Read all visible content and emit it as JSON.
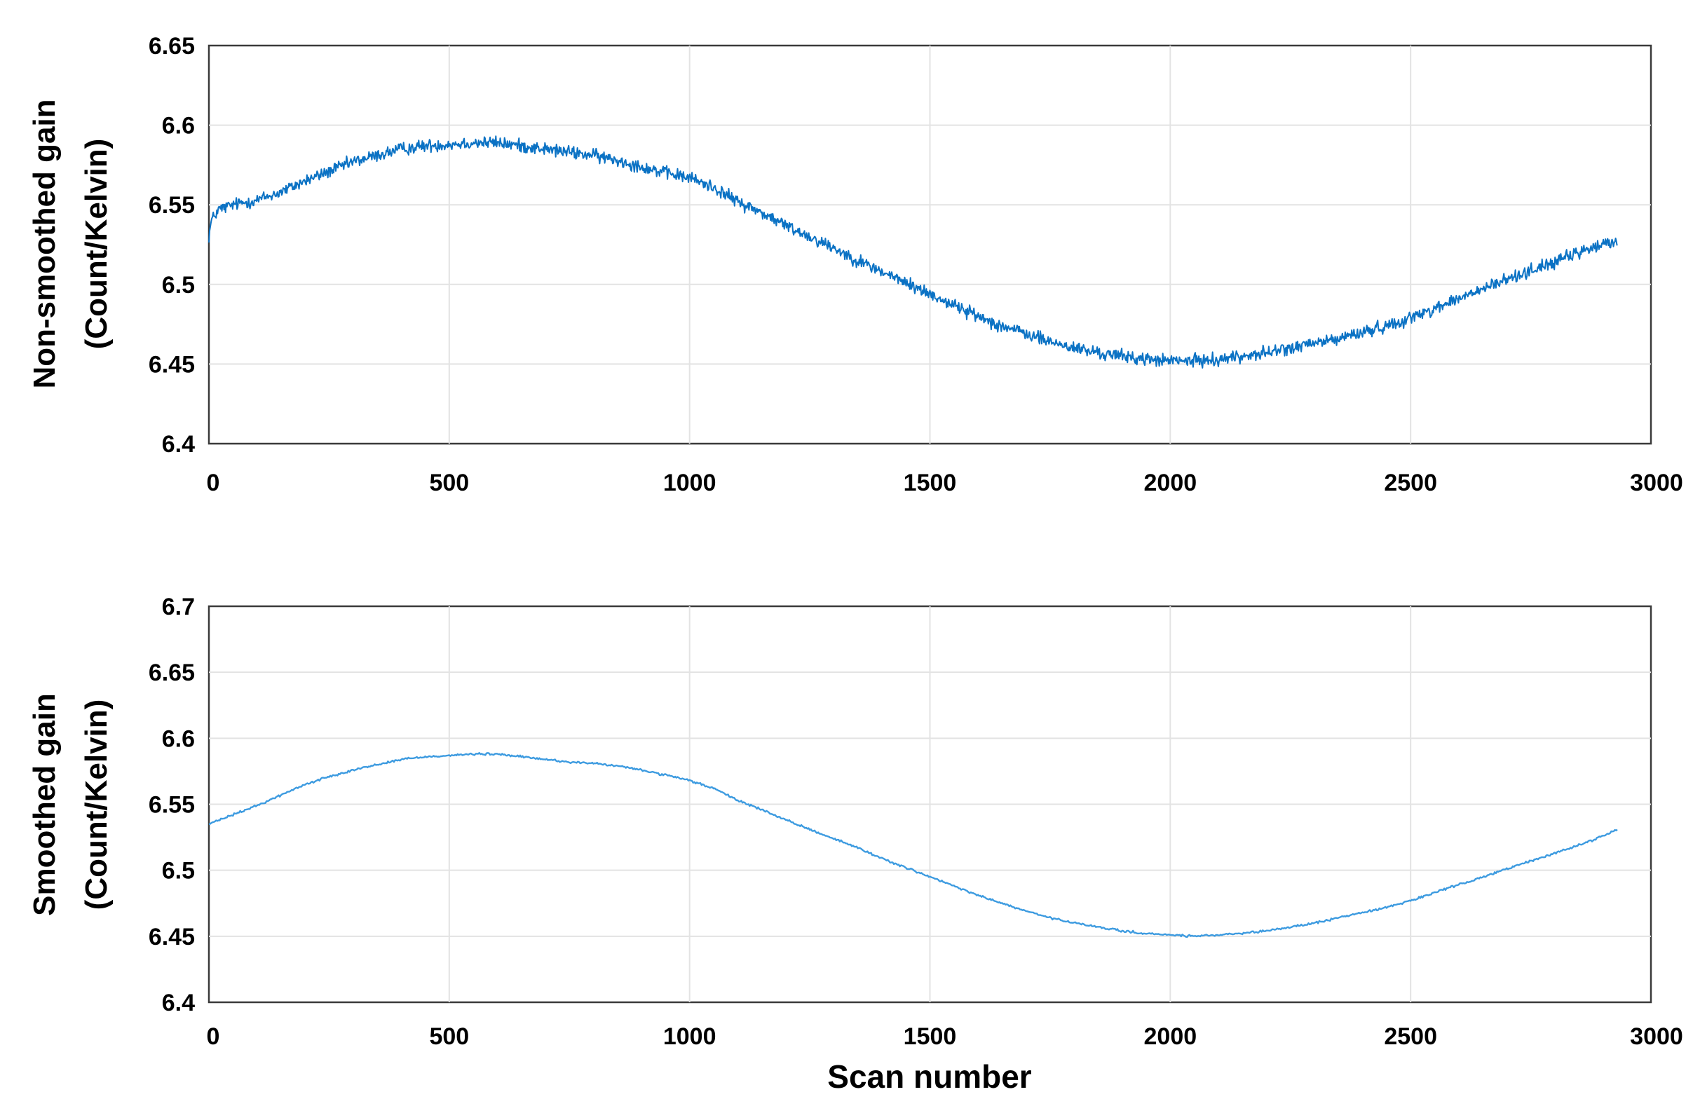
{
  "chart_data": [
    {
      "type": "line",
      "name": "top-panel",
      "ylabel": [
        "Non-smoothed gain",
        "(Count/Kelvin)"
      ],
      "xlabel": "",
      "xlim": [
        0,
        3000
      ],
      "ylim": [
        6.4,
        6.65
      ],
      "xticks": [
        0,
        500,
        1000,
        1500,
        2000,
        2500,
        3000
      ],
      "xtick_labels": [
        "0",
        "500",
        "1000",
        "1500",
        "2000",
        "2500",
        "3000"
      ],
      "yticks": [
        6.4,
        6.45,
        6.5,
        6.55,
        6.6,
        6.65
      ],
      "ytick_labels": [
        "6.4",
        "6.45",
        "6.5",
        "6.55",
        "6.6",
        "6.65"
      ],
      "grid": true,
      "line_color": "#0b72c4",
      "noise_amplitude": 0.006,
      "series": [
        {
          "x": [
            0,
            5,
            20,
            50,
            100,
            150,
            200,
            250,
            300,
            350,
            400,
            450,
            500,
            550,
            600,
            650,
            700,
            750,
            800,
            850,
            900,
            950,
            1000,
            1050,
            1100,
            1150,
            1200,
            1250,
            1300,
            1350,
            1400,
            1450,
            1500,
            1550,
            1600,
            1650,
            1700,
            1750,
            1800,
            1850,
            1900,
            1950,
            2000,
            2050,
            2100,
            2150,
            2200,
            2250,
            2300,
            2350,
            2400,
            2450,
            2500,
            2550,
            2600,
            2650,
            2700,
            2750,
            2800,
            2850,
            2900,
            2930
          ],
          "y": [
            6.53,
            6.54,
            6.547,
            6.55,
            6.553,
            6.558,
            6.565,
            6.571,
            6.577,
            6.581,
            6.585,
            6.587,
            6.588,
            6.589,
            6.589,
            6.587,
            6.585,
            6.583,
            6.581,
            6.578,
            6.574,
            6.57,
            6.567,
            6.561,
            6.552,
            6.545,
            6.537,
            6.53,
            6.523,
            6.515,
            6.508,
            6.501,
            6.494,
            6.487,
            6.48,
            6.474,
            6.469,
            6.464,
            6.46,
            6.457,
            6.455,
            6.453,
            6.452,
            6.452,
            6.453,
            6.455,
            6.457,
            6.46,
            6.463,
            6.466,
            6.47,
            6.474,
            6.479,
            6.485,
            6.491,
            6.497,
            6.503,
            6.509,
            6.514,
            6.52,
            6.525,
            6.527
          ]
        }
      ]
    },
    {
      "type": "line",
      "name": "bottom-panel",
      "ylabel": [
        "Smoothed gain",
        "(Count/Kelvin)"
      ],
      "xlabel": "Scan number",
      "xlim": [
        0,
        3000
      ],
      "ylim": [
        6.4,
        6.7
      ],
      "xticks": [
        0,
        500,
        1000,
        1500,
        2000,
        2500,
        3000
      ],
      "xtick_labels": [
        "0",
        "500",
        "1000",
        "1500",
        "2000",
        "2500",
        "3000"
      ],
      "yticks": [
        6.4,
        6.45,
        6.5,
        6.55,
        6.6,
        6.65,
        6.7
      ],
      "ytick_labels": [
        "6.4",
        "6.45",
        "6.5",
        "6.55",
        "6.6",
        "6.65",
        "6.7"
      ],
      "grid": true,
      "line_color": "#3d9be0",
      "noise_amplitude": 0.0012,
      "series": [
        {
          "x": [
            0,
            50,
            100,
            150,
            200,
            250,
            300,
            350,
            400,
            450,
            500,
            550,
            600,
            650,
            700,
            750,
            800,
            850,
            900,
            950,
            1000,
            1050,
            1100,
            1150,
            1200,
            1250,
            1300,
            1350,
            1400,
            1450,
            1500,
            1550,
            1600,
            1650,
            1700,
            1750,
            1800,
            1850,
            1900,
            1950,
            2000,
            2050,
            2100,
            2150,
            2200,
            2250,
            2300,
            2350,
            2400,
            2450,
            2500,
            2550,
            2600,
            2650,
            2700,
            2750,
            2800,
            2850,
            2900,
            2930
          ],
          "y": [
            6.535,
            6.542,
            6.549,
            6.557,
            6.565,
            6.571,
            6.576,
            6.58,
            6.584,
            6.586,
            6.587,
            6.588,
            6.588,
            6.586,
            6.584,
            6.582,
            6.581,
            6.579,
            6.576,
            6.572,
            6.568,
            6.562,
            6.553,
            6.546,
            6.538,
            6.531,
            6.524,
            6.517,
            6.509,
            6.502,
            6.495,
            6.488,
            6.481,
            6.475,
            6.469,
            6.464,
            6.46,
            6.457,
            6.454,
            6.452,
            6.451,
            6.45,
            6.451,
            6.452,
            6.454,
            6.457,
            6.46,
            6.464,
            6.468,
            6.472,
            6.477,
            6.483,
            6.489,
            6.495,
            6.501,
            6.507,
            6.513,
            6.519,
            6.526,
            6.531
          ]
        }
      ]
    }
  ]
}
